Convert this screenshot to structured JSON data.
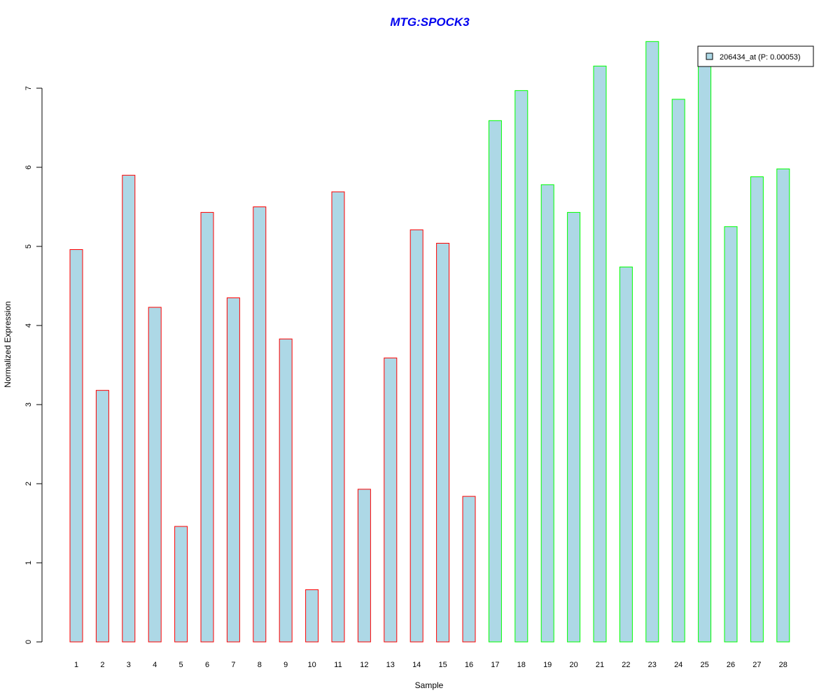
{
  "chart_data": {
    "type": "bar",
    "title": "MTG:SPOCK3",
    "xlabel": "Sample",
    "ylabel": "Normalized Expression",
    "ylim": [
      0,
      7.6
    ],
    "yticks": [
      0,
      1,
      2,
      3,
      4,
      5,
      6,
      7
    ],
    "grid": false,
    "legend": {
      "label": "206434_at (P: 0.00053)",
      "position": "top-right"
    },
    "categories": [
      "1",
      "2",
      "3",
      "4",
      "5",
      "6",
      "7",
      "8",
      "9",
      "10",
      "11",
      "12",
      "13",
      "14",
      "15",
      "16",
      "17",
      "18",
      "19",
      "20",
      "21",
      "22",
      "23",
      "24",
      "25",
      "26",
      "27",
      "28"
    ],
    "values": [
      4.96,
      3.18,
      5.9,
      4.23,
      1.46,
      5.43,
      4.35,
      5.5,
      3.83,
      0.66,
      5.69,
      1.93,
      3.59,
      5.21,
      5.04,
      1.84,
      6.59,
      6.97,
      5.78,
      5.43,
      7.28,
      4.74,
      7.59,
      6.86,
      7.4,
      5.25,
      5.88,
      5.98
    ],
    "groups": [
      "red",
      "red",
      "red",
      "red",
      "red",
      "red",
      "red",
      "red",
      "red",
      "red",
      "red",
      "red",
      "red",
      "red",
      "red",
      "red",
      "green",
      "green",
      "green",
      "green",
      "green",
      "green",
      "green",
      "green",
      "green",
      "green",
      "green",
      "green"
    ],
    "colors": {
      "fill": "#add8e6",
      "red": "#ff0000",
      "green": "#00ff00",
      "title": "#0000ee"
    }
  }
}
